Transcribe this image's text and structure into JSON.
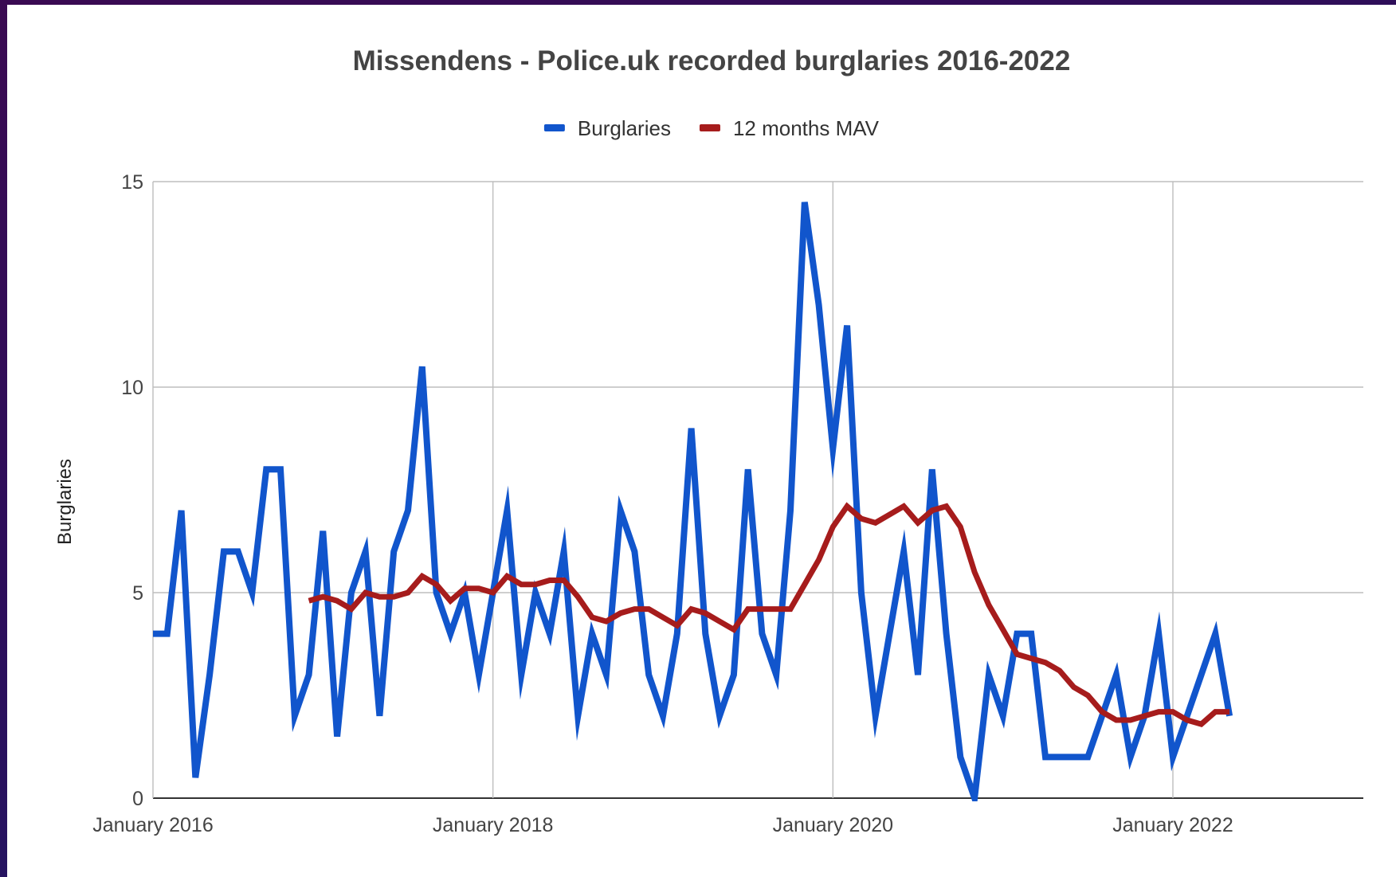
{
  "chart_data": {
    "type": "line",
    "title": "Missendens - Police.uk recorded burglaries 2016-2022",
    "ylabel": "Burglaries",
    "xlabel": "",
    "ylim": [
      0,
      15
    ],
    "yticks": [
      "0",
      "5",
      "10",
      "15"
    ],
    "x_tick_labels": [
      "January 2016",
      "January 2018",
      "January 2020",
      "January 2022"
    ],
    "x_start": "January 2016",
    "x_end": "March 2022",
    "grid": true,
    "legend_position": "top-center",
    "series": [
      {
        "name": "Burglaries",
        "color": "#1155cc",
        "x_start": "January 2016",
        "values": [
          4,
          4,
          7,
          0.5,
          3,
          6,
          6,
          5,
          8,
          8,
          2,
          3,
          6.5,
          1.5,
          5,
          6,
          2,
          6,
          7,
          10.5,
          5,
          4,
          5,
          3,
          5,
          7,
          3,
          5,
          4,
          6,
          2,
          4,
          3,
          7,
          6,
          3,
          2,
          4,
          9,
          4,
          2,
          3,
          8,
          4,
          3,
          7,
          14.5,
          12,
          8.5,
          11.5,
          5,
          2,
          4,
          6,
          3,
          8,
          4,
          1,
          0,
          3,
          2,
          4,
          4,
          1,
          1,
          1,
          1,
          2,
          3,
          1,
          2,
          4,
          1,
          2,
          3,
          4,
          2
        ]
      },
      {
        "name": "12 months MAV",
        "color": "#a61c1c",
        "x_start": "December 2016",
        "values": [
          4.8,
          4.9,
          4.8,
          4.6,
          5,
          4.9,
          4.9,
          5,
          5.4,
          5.2,
          4.8,
          5.1,
          5.1,
          5,
          5.4,
          5.2,
          5.2,
          5.3,
          5.3,
          4.9,
          4.4,
          4.3,
          4.5,
          4.6,
          4.6,
          4.4,
          4.2,
          4.6,
          4.5,
          4.3,
          4.1,
          4.6,
          4.6,
          4.6,
          4.6,
          5.2,
          5.8,
          6.6,
          7.1,
          6.8,
          6.7,
          6.9,
          7.1,
          6.7,
          7,
          7.1,
          6.6,
          5.5,
          4.7,
          4.1,
          3.5,
          3.4,
          3.3,
          3.1,
          2.7,
          2.5,
          2.1,
          1.9,
          1.9,
          2,
          2.1,
          2.1,
          1.9,
          1.8,
          2.1,
          2.1
        ]
      }
    ]
  }
}
